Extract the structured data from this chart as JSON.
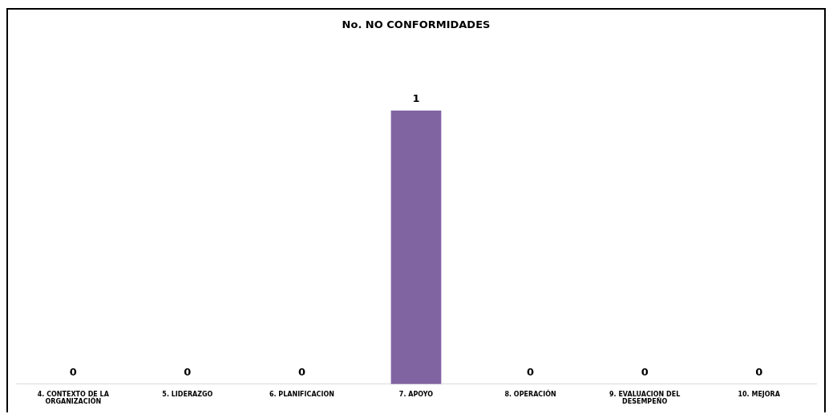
{
  "chart_data": {
    "type": "bar",
    "title": "No. NO CONFORMIDADES",
    "categories": [
      "4. CONTEXTO DE LA ORGANIZACIÓN",
      "5. LIDERAZGO",
      "6. PLANIFICACION",
      "7. APOYO",
      "8. OPERACIÓN",
      "9. EVALUACION DEL DESEMPEÑO",
      "10. MEJORA"
    ],
    "values": [
      0,
      0,
      0,
      1,
      0,
      0,
      0
    ],
    "color": "#8064a2",
    "tick_labels": "x",
    "data_labels": true,
    "grid": false,
    "legend": false
  }
}
